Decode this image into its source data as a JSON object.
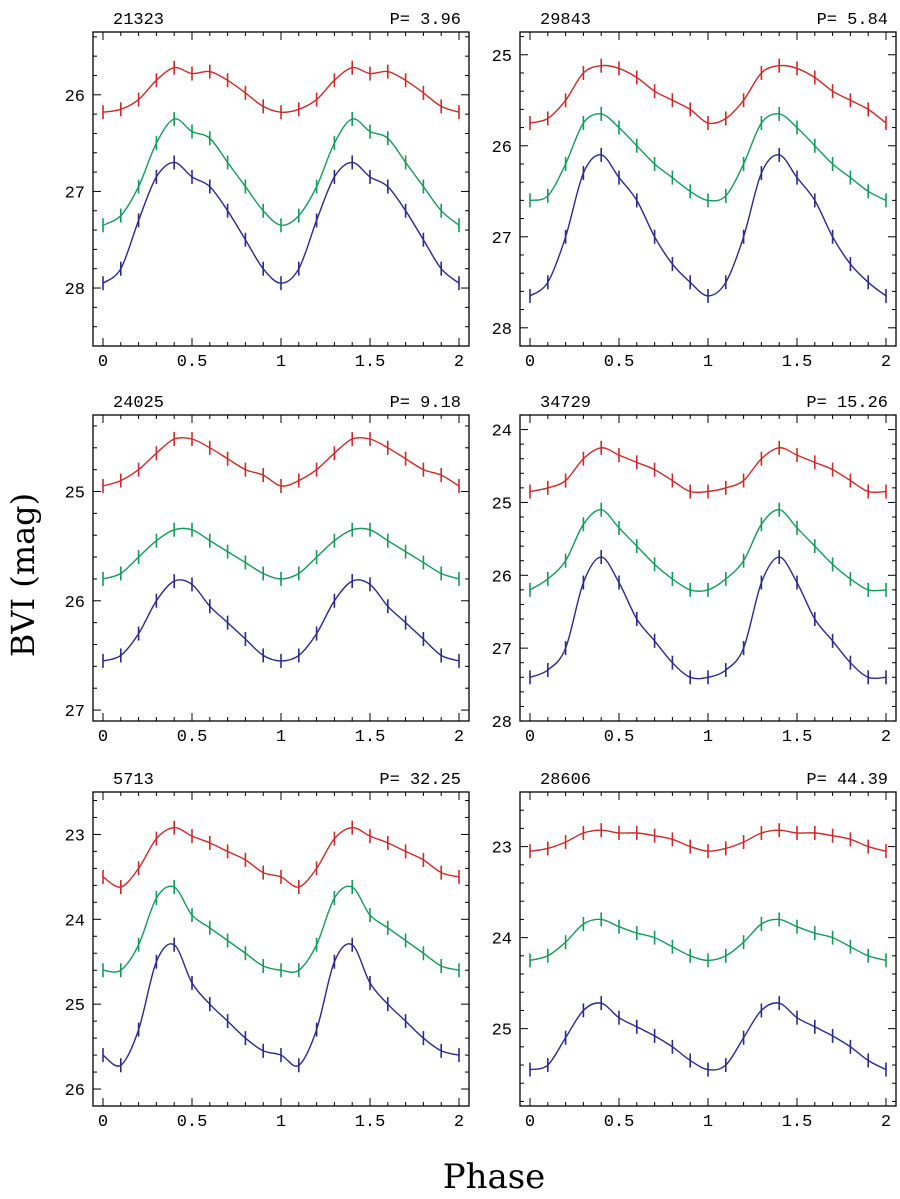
{
  "figure": {
    "ylabel": "BVI (mag)",
    "xlabel": "Phase"
  },
  "colors": {
    "I": "#cc2a2a",
    "V": "#159a5a",
    "B": "#2a2a8c",
    "frame": "#000000"
  },
  "chart_data": [
    {
      "type": "line",
      "id": "21323",
      "period_label": "P=  3.96",
      "xlim": [
        0,
        2
      ],
      "ylim": [
        28.6,
        25.35
      ],
      "xticks": [
        0,
        0.5,
        1,
        1.5,
        2
      ],
      "xtick_labels": [
        "0",
        "0.5",
        "1",
        "1.5",
        "2"
      ],
      "yticks": [
        26,
        27,
        28
      ],
      "ytick_labels": [
        "26",
        "27",
        "28"
      ],
      "series": [
        {
          "name": "I",
          "x": [
            0.0,
            0.1,
            0.2,
            0.3,
            0.4,
            0.5,
            0.6,
            0.7,
            0.8,
            0.9,
            1.0,
            1.1,
            1.2,
            1.3,
            1.4,
            1.5,
            1.6,
            1.7,
            1.8,
            1.9,
            2.0
          ],
          "y": [
            26.18,
            26.15,
            26.05,
            25.85,
            25.72,
            25.78,
            25.76,
            25.85,
            25.98,
            26.12,
            26.18,
            26.15,
            26.05,
            25.85,
            25.72,
            25.78,
            25.76,
            25.85,
            25.98,
            26.12,
            26.18
          ]
        },
        {
          "name": "V",
          "x": [
            0.0,
            0.1,
            0.2,
            0.3,
            0.4,
            0.5,
            0.6,
            0.7,
            0.8,
            0.9,
            1.0,
            1.1,
            1.2,
            1.3,
            1.4,
            1.5,
            1.6,
            1.7,
            1.8,
            1.9,
            2.0
          ],
          "y": [
            27.35,
            27.25,
            26.95,
            26.5,
            26.25,
            26.38,
            26.45,
            26.7,
            26.95,
            27.2,
            27.35,
            27.25,
            26.95,
            26.5,
            26.25,
            26.38,
            26.45,
            26.7,
            26.95,
            27.2,
            27.35
          ]
        },
        {
          "name": "B",
          "x": [
            0.0,
            0.1,
            0.2,
            0.3,
            0.4,
            0.5,
            0.6,
            0.7,
            0.8,
            0.9,
            1.0,
            1.1,
            1.2,
            1.3,
            1.4,
            1.5,
            1.6,
            1.7,
            1.8,
            1.9,
            2.0
          ],
          "y": [
            27.95,
            27.8,
            27.3,
            26.85,
            26.7,
            26.85,
            26.95,
            27.2,
            27.5,
            27.8,
            27.95,
            27.8,
            27.3,
            26.85,
            26.7,
            26.85,
            26.95,
            27.2,
            27.5,
            27.8,
            27.95
          ]
        }
      ]
    },
    {
      "type": "line",
      "id": "29843",
      "period_label": "P=   5.84",
      "xlim": [
        0,
        2
      ],
      "ylim": [
        28.2,
        24.75
      ],
      "xticks": [
        0,
        0.5,
        1,
        1.5,
        2
      ],
      "xtick_labels": [
        "0",
        "0.5",
        "1",
        "1.5",
        "2"
      ],
      "yticks": [
        25,
        26,
        27,
        28
      ],
      "ytick_labels": [
        "25",
        "26",
        "27",
        "28"
      ],
      "series": [
        {
          "name": "I",
          "x": [
            0.0,
            0.1,
            0.2,
            0.3,
            0.4,
            0.5,
            0.6,
            0.7,
            0.8,
            0.9,
            1.0,
            1.1,
            1.2,
            1.3,
            1.4,
            1.5,
            1.6,
            1.7,
            1.8,
            1.9,
            2.0
          ],
          "y": [
            25.75,
            25.7,
            25.5,
            25.2,
            25.12,
            25.15,
            25.25,
            25.4,
            25.5,
            25.6,
            25.75,
            25.7,
            25.5,
            25.2,
            25.12,
            25.15,
            25.25,
            25.4,
            25.5,
            25.6,
            25.75
          ]
        },
        {
          "name": "V",
          "x": [
            0.0,
            0.1,
            0.2,
            0.3,
            0.4,
            0.5,
            0.6,
            0.7,
            0.8,
            0.9,
            1.0,
            1.1,
            1.2,
            1.3,
            1.4,
            1.5,
            1.6,
            1.7,
            1.8,
            1.9,
            2.0
          ],
          "y": [
            26.6,
            26.55,
            26.2,
            25.75,
            25.65,
            25.8,
            26.0,
            26.2,
            26.35,
            26.5,
            26.6,
            26.55,
            26.2,
            25.75,
            25.65,
            25.8,
            26.0,
            26.2,
            26.35,
            26.5,
            26.6
          ]
        },
        {
          "name": "B",
          "x": [
            0.0,
            0.1,
            0.2,
            0.3,
            0.4,
            0.5,
            0.6,
            0.7,
            0.8,
            0.9,
            1.0,
            1.1,
            1.2,
            1.3,
            1.4,
            1.5,
            1.6,
            1.7,
            1.8,
            1.9,
            2.0
          ],
          "y": [
            27.65,
            27.5,
            27.0,
            26.3,
            26.1,
            26.35,
            26.6,
            27.0,
            27.3,
            27.5,
            27.65,
            27.5,
            27.0,
            26.3,
            26.1,
            26.35,
            26.6,
            27.0,
            27.3,
            27.5,
            27.65
          ]
        }
      ]
    },
    {
      "type": "line",
      "id": "24025",
      "period_label": "P=   9.18",
      "xlim": [
        0,
        2
      ],
      "ylim": [
        27.1,
        24.3
      ],
      "xticks": [
        0,
        0.5,
        1,
        1.5,
        2
      ],
      "xtick_labels": [
        "0",
        "0.5",
        "1",
        "1.5",
        "2"
      ],
      "yticks": [
        25,
        26,
        27
      ],
      "ytick_labels": [
        "25",
        "26",
        "27"
      ],
      "series": [
        {
          "name": "I",
          "x": [
            0.0,
            0.1,
            0.2,
            0.3,
            0.4,
            0.5,
            0.6,
            0.7,
            0.8,
            0.9,
            1.0,
            1.1,
            1.2,
            1.3,
            1.4,
            1.5,
            1.6,
            1.7,
            1.8,
            1.9,
            2.0
          ],
          "y": [
            24.95,
            24.9,
            24.8,
            24.65,
            24.52,
            24.52,
            24.6,
            24.7,
            24.8,
            24.85,
            24.95,
            24.9,
            24.8,
            24.65,
            24.52,
            24.52,
            24.6,
            24.7,
            24.8,
            24.85,
            24.95
          ]
        },
        {
          "name": "V",
          "x": [
            0.0,
            0.1,
            0.2,
            0.3,
            0.4,
            0.5,
            0.6,
            0.7,
            0.8,
            0.9,
            1.0,
            1.1,
            1.2,
            1.3,
            1.4,
            1.5,
            1.6,
            1.7,
            1.8,
            1.9,
            2.0
          ],
          "y": [
            25.8,
            25.75,
            25.6,
            25.45,
            25.35,
            25.35,
            25.45,
            25.55,
            25.65,
            25.75,
            25.8,
            25.75,
            25.6,
            25.45,
            25.35,
            25.35,
            25.45,
            25.55,
            25.65,
            25.75,
            25.8
          ]
        },
        {
          "name": "B",
          "x": [
            0.0,
            0.1,
            0.2,
            0.3,
            0.4,
            0.5,
            0.6,
            0.7,
            0.8,
            0.9,
            1.0,
            1.1,
            1.2,
            1.3,
            1.4,
            1.5,
            1.6,
            1.7,
            1.8,
            1.9,
            2.0
          ],
          "y": [
            26.55,
            26.5,
            26.3,
            26.0,
            25.82,
            25.85,
            26.05,
            26.2,
            26.35,
            26.5,
            26.55,
            26.5,
            26.3,
            26.0,
            25.82,
            25.85,
            26.05,
            26.2,
            26.35,
            26.5,
            26.55
          ]
        }
      ]
    },
    {
      "type": "line",
      "id": "34729",
      "period_label": "P=  15.26",
      "xlim": [
        0,
        2
      ],
      "ylim": [
        28.0,
        23.8
      ],
      "xticks": [
        0,
        0.5,
        1,
        1.5,
        2
      ],
      "xtick_labels": [
        "0",
        "0.5",
        "1",
        "1.5",
        "2"
      ],
      "yticks": [
        24,
        25,
        26,
        27,
        28
      ],
      "ytick_labels": [
        "24",
        "25",
        "26",
        "27",
        "28"
      ],
      "series": [
        {
          "name": "I",
          "x": [
            0.0,
            0.1,
            0.2,
            0.3,
            0.4,
            0.5,
            0.6,
            0.7,
            0.8,
            0.9,
            1.0,
            1.1,
            1.2,
            1.3,
            1.4,
            1.5,
            1.6,
            1.7,
            1.8,
            1.9,
            2.0
          ],
          "y": [
            24.85,
            24.8,
            24.7,
            24.4,
            24.25,
            24.35,
            24.45,
            24.55,
            24.7,
            24.85,
            24.85,
            24.8,
            24.7,
            24.4,
            24.25,
            24.35,
            24.45,
            24.55,
            24.7,
            24.85,
            24.85
          ]
        },
        {
          "name": "V",
          "x": [
            0.0,
            0.1,
            0.2,
            0.3,
            0.4,
            0.5,
            0.6,
            0.7,
            0.8,
            0.9,
            1.0,
            1.1,
            1.2,
            1.3,
            1.4,
            1.5,
            1.6,
            1.7,
            1.8,
            1.9,
            2.0
          ],
          "y": [
            26.2,
            26.05,
            25.8,
            25.3,
            25.1,
            25.35,
            25.6,
            25.85,
            26.05,
            26.2,
            26.2,
            26.05,
            25.8,
            25.3,
            25.1,
            25.35,
            25.6,
            25.85,
            26.05,
            26.2,
            26.2
          ]
        },
        {
          "name": "B",
          "x": [
            0.0,
            0.1,
            0.2,
            0.3,
            0.4,
            0.5,
            0.6,
            0.7,
            0.8,
            0.9,
            1.0,
            1.1,
            1.2,
            1.3,
            1.4,
            1.5,
            1.6,
            1.7,
            1.8,
            1.9,
            2.0
          ],
          "y": [
            27.4,
            27.3,
            27.0,
            26.1,
            25.75,
            26.1,
            26.6,
            26.9,
            27.2,
            27.4,
            27.4,
            27.3,
            27.0,
            26.1,
            25.75,
            26.1,
            26.6,
            26.9,
            27.2,
            27.4,
            27.4
          ]
        }
      ]
    },
    {
      "type": "line",
      "id": "5713",
      "period_label": "P=  32.25",
      "xlim": [
        0,
        2
      ],
      "ylim": [
        26.2,
        22.5
      ],
      "xticks": [
        0,
        0.5,
        1,
        1.5,
        2
      ],
      "xtick_labels": [
        "0",
        "0.5",
        "1",
        "1.5",
        "2"
      ],
      "yticks": [
        23,
        24,
        25,
        26
      ],
      "ytick_labels": [
        "23",
        "24",
        "25",
        "26"
      ],
      "series": [
        {
          "name": "I",
          "x": [
            0.0,
            0.1,
            0.2,
            0.3,
            0.4,
            0.5,
            0.6,
            0.7,
            0.8,
            0.9,
            1.0,
            1.1,
            1.2,
            1.3,
            1.4,
            1.5,
            1.6,
            1.7,
            1.8,
            1.9,
            2.0
          ],
          "y": [
            23.5,
            23.62,
            23.4,
            23.05,
            22.92,
            23.02,
            23.1,
            23.2,
            23.3,
            23.45,
            23.5,
            23.62,
            23.4,
            23.05,
            22.92,
            23.02,
            23.1,
            23.2,
            23.3,
            23.45,
            23.5
          ]
        },
        {
          "name": "V",
          "x": [
            0.0,
            0.1,
            0.2,
            0.3,
            0.4,
            0.5,
            0.6,
            0.7,
            0.8,
            0.9,
            1.0,
            1.1,
            1.2,
            1.3,
            1.4,
            1.5,
            1.6,
            1.7,
            1.8,
            1.9,
            2.0
          ],
          "y": [
            24.6,
            24.6,
            24.3,
            23.75,
            23.62,
            23.95,
            24.1,
            24.25,
            24.4,
            24.55,
            24.6,
            24.6,
            24.3,
            23.75,
            23.62,
            23.95,
            24.1,
            24.25,
            24.4,
            24.55,
            24.6
          ]
        },
        {
          "name": "B",
          "x": [
            0.0,
            0.1,
            0.2,
            0.3,
            0.4,
            0.5,
            0.6,
            0.7,
            0.8,
            0.9,
            1.0,
            1.1,
            1.2,
            1.3,
            1.4,
            1.5,
            1.6,
            1.7,
            1.8,
            1.9,
            2.0
          ],
          "y": [
            25.6,
            25.72,
            25.3,
            24.5,
            24.3,
            24.75,
            25.0,
            25.2,
            25.4,
            25.55,
            25.6,
            25.72,
            25.3,
            24.5,
            24.3,
            24.75,
            25.0,
            25.2,
            25.4,
            25.55,
            25.6
          ]
        }
      ]
    },
    {
      "type": "line",
      "id": "28606",
      "period_label": "P=  44.39",
      "xlim": [
        0,
        2
      ],
      "ylim": [
        25.85,
        22.4
      ],
      "xticks": [
        0,
        0.5,
        1,
        1.5,
        2
      ],
      "xtick_labels": [
        "0",
        "0.5",
        "1",
        "1.5",
        "2"
      ],
      "yticks": [
        23,
        24,
        25
      ],
      "ytick_labels": [
        "23",
        "24",
        "25"
      ],
      "series": [
        {
          "name": "I",
          "x": [
            0.0,
            0.1,
            0.2,
            0.3,
            0.4,
            0.5,
            0.6,
            0.7,
            0.8,
            0.9,
            1.0,
            1.1,
            1.2,
            1.3,
            1.4,
            1.5,
            1.6,
            1.7,
            1.8,
            1.9,
            2.0
          ],
          "y": [
            23.05,
            23.02,
            22.95,
            22.85,
            22.82,
            22.85,
            22.85,
            22.88,
            22.92,
            23.0,
            23.05,
            23.02,
            22.95,
            22.85,
            22.82,
            22.85,
            22.85,
            22.88,
            22.92,
            23.0,
            23.05
          ]
        },
        {
          "name": "V",
          "x": [
            0.0,
            0.1,
            0.2,
            0.3,
            0.4,
            0.5,
            0.6,
            0.7,
            0.8,
            0.9,
            1.0,
            1.1,
            1.2,
            1.3,
            1.4,
            1.5,
            1.6,
            1.7,
            1.8,
            1.9,
            2.0
          ],
          "y": [
            24.25,
            24.2,
            24.05,
            23.85,
            23.8,
            23.88,
            23.95,
            24.0,
            24.1,
            24.2,
            24.25,
            24.2,
            24.05,
            23.85,
            23.8,
            23.88,
            23.95,
            24.0,
            24.1,
            24.2,
            24.25
          ]
        },
        {
          "name": "B",
          "x": [
            0.0,
            0.1,
            0.2,
            0.3,
            0.4,
            0.5,
            0.6,
            0.7,
            0.8,
            0.9,
            1.0,
            1.1,
            1.2,
            1.3,
            1.4,
            1.5,
            1.6,
            1.7,
            1.8,
            1.9,
            2.0
          ],
          "y": [
            25.45,
            25.4,
            25.1,
            24.8,
            24.72,
            24.88,
            24.98,
            25.08,
            25.2,
            25.35,
            25.45,
            25.4,
            25.1,
            24.8,
            24.72,
            24.88,
            24.98,
            25.08,
            25.2,
            25.35,
            25.45
          ]
        }
      ]
    }
  ]
}
